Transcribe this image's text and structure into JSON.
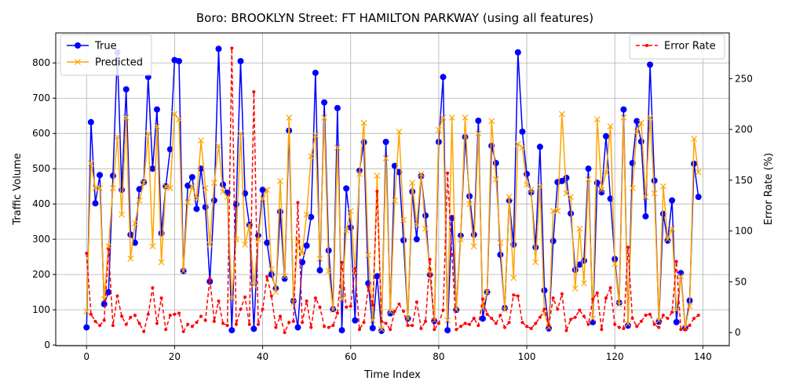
{
  "chart_data": {
    "type": "line",
    "title": "Boro: BROOKLYN Street: FT HAMILTON PARKWAY (using all features)",
    "xlabel": "Time Index",
    "ylabel": "Traffic Volume",
    "y2label": "Error Rate (%)",
    "xlim": [
      -7,
      146
    ],
    "ylim": [
      -2,
      885
    ],
    "y2lim": [
      -13,
      295
    ],
    "xticks": [
      0,
      20,
      40,
      60,
      80,
      100,
      120,
      140
    ],
    "yticks": [
      0,
      100,
      200,
      300,
      400,
      500,
      600,
      700,
      800
    ],
    "y2ticks": [
      0,
      50,
      100,
      150,
      200,
      250
    ],
    "grid": true,
    "legend_left": {
      "position": "upper-left",
      "entries": [
        "True",
        "Predicted"
      ]
    },
    "legend_right": {
      "position": "upper-right",
      "entries": [
        "Error Rate"
      ]
    },
    "series": [
      {
        "name": "True",
        "color": "#0000ff",
        "axis": "left",
        "marker": "circle",
        "values": [
          50,
          632,
          402,
          482,
          116,
          150,
          480,
          830,
          440,
          725,
          313,
          290,
          442,
          462,
          760,
          500,
          668,
          317,
          450,
          555,
          808,
          805,
          210,
          452,
          476,
          386,
          500,
          391,
          180,
          410,
          840,
          455,
          432,
          42,
          399,
          805,
          430,
          341,
          46,
          310,
          440,
          290,
          200,
          160,
          378,
          188,
          608,
          125,
          50,
          235,
          282,
          363,
          772,
          212,
          688,
          268,
          102,
          672,
          42,
          444,
          333,
          70,
          494,
          575,
          175,
          48,
          195,
          40,
          576,
          90,
          508,
          490,
          297,
          75,
          435,
          300,
          479,
          367,
          200,
          68,
          576,
          760,
          42,
          360,
          100,
          310,
          590,
          422,
          313,
          636,
          75,
          150,
          565,
          516,
          256,
          105,
          410,
          285,
          830,
          605,
          485,
          433,
          277,
          562,
          155,
          47,
          295,
          462,
          465,
          474,
          373,
          213,
          228,
          239,
          500,
          65,
          460,
          433,
          592,
          415,
          244,
          120,
          668,
          55,
          516,
          635,
          577,
          365,
          795,
          466,
          66,
          372,
          296,
          410,
          65,
          204,
          48,
          126,
          514,
          420
        ]
      },
      {
        "name": "Predicted",
        "color": "#ffa500",
        "axis": "left",
        "marker": "x",
        "values": [
          95,
          515,
          445,
          445,
          130,
          280,
          445,
          590,
          370,
          645,
          245,
          345,
          410,
          460,
          600,
          280,
          620,
          235,
          450,
          445,
          655,
          640,
          210,
          405,
          450,
          415,
          580,
          445,
          285,
          460,
          565,
          435,
          420,
          135,
          300,
          600,
          285,
          340,
          170,
          300,
          415,
          440,
          215,
          150,
          465,
          195,
          645,
          120,
          300,
          260,
          370,
          535,
          595,
          245,
          645,
          210,
          100,
          560,
          130,
          325,
          380,
          210,
          485,
          630,
          255,
          70,
          480,
          45,
          530,
          95,
          410,
          605,
          355,
          75,
          460,
          340,
          485,
          330,
          210,
          70,
          610,
          645,
          70,
          645,
          100,
          300,
          645,
          400,
          280,
          600,
          105,
          150,
          635,
          470,
          290,
          100,
          420,
          190,
          570,
          560,
          455,
          440,
          235,
          450,
          90,
          50,
          380,
          380,
          655,
          430,
          420,
          160,
          330,
          175,
          470,
          75,
          640,
          440,
          490,
          620,
          230,
          115,
          645,
          60,
          445,
          605,
          630,
          420,
          645,
          430,
          70,
          450,
          300,
          330,
          100,
          195,
          50,
          110,
          585,
          490
        ]
      },
      {
        "name": "Error Rate",
        "color": "#ff0000",
        "axis": "right",
        "marker": "dot",
        "values": [
          78,
          18,
          11,
          7,
          12,
          82,
          7,
          36,
          16,
          8,
          15,
          17,
          9,
          1,
          18,
          44,
          9,
          34,
          3,
          17,
          18,
          19,
          1,
          8,
          6,
          10,
          16,
          12,
          53,
          11,
          31,
          9,
          7,
          280,
          8,
          23,
          35,
          8,
          237,
          8,
          23,
          55,
          36,
          5,
          16,
          0,
          10,
          11,
          128,
          10,
          31,
          5,
          34,
          25,
          6,
          5,
          7,
          19,
          69,
          25,
          26,
          63,
          3,
          10,
          45,
          27,
          139,
          11,
          9,
          3,
          21,
          28,
          21,
          7,
          7,
          30,
          4,
          11,
          72,
          3,
          9,
          22,
          157,
          77,
          3,
          6,
          9,
          8,
          14,
          7,
          33,
          18,
          14,
          9,
          17,
          5,
          10,
          37,
          36,
          10,
          6,
          4,
          9,
          15,
          23,
          7,
          34,
          23,
          38,
          2,
          13,
          15,
          22,
          16,
          8,
          33,
          39,
          3,
          34,
          44,
          8,
          5,
          4,
          84,
          14,
          6,
          11,
          17,
          18,
          8,
          5,
          17,
          14,
          20,
          70,
          3,
          3,
          7,
          14,
          17
        ]
      }
    ]
  }
}
